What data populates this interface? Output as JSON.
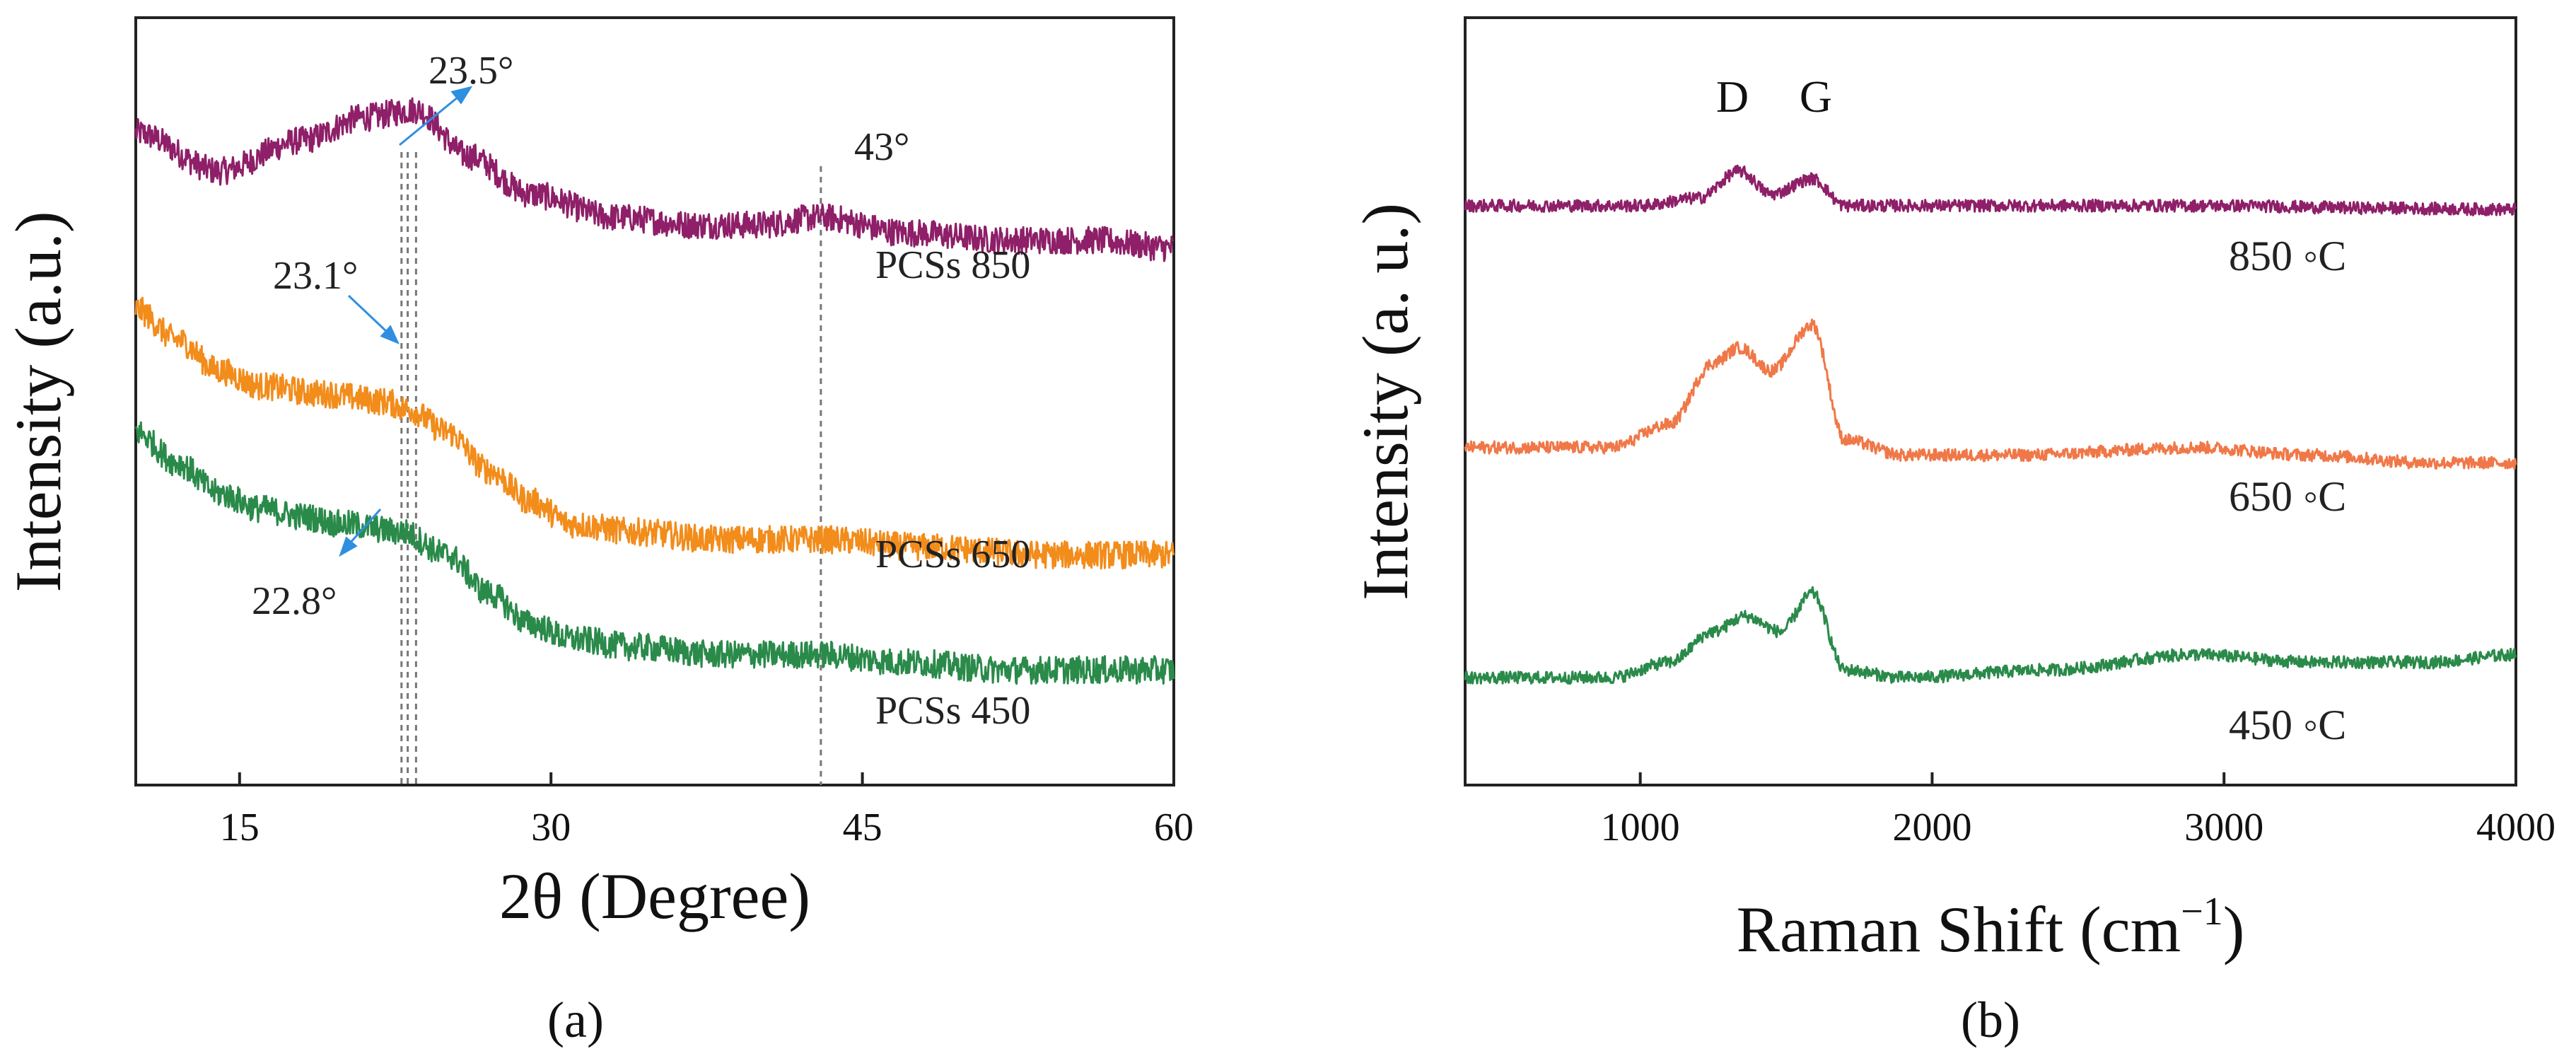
{
  "figure": {
    "panel_a_label": "(a)",
    "panel_b_label": "(b)"
  },
  "chart_data": [
    {
      "id": "a",
      "type": "line",
      "title": "",
      "xlabel": "2θ (Degree)",
      "ylabel": "Intensity (a.u.)",
      "xlim": [
        10,
        60
      ],
      "xticks": [
        15,
        30,
        45,
        60
      ],
      "yticks_visible": false,
      "grid": false,
      "series": [
        {
          "name": "PCSs 850",
          "color": "#8E1F68",
          "x": [
            10,
            14,
            18,
            21,
            23.5,
            26,
            29,
            33,
            37,
            40,
            43,
            47,
            52,
            56,
            60
          ],
          "values": [
            0.85,
            0.8,
            0.84,
            0.87,
            0.88,
            0.82,
            0.77,
            0.74,
            0.73,
            0.73,
            0.74,
            0.72,
            0.71,
            0.71,
            0.7
          ]
        },
        {
          "name": "PCSs 650",
          "color": "#F28C1B",
          "x": [
            10,
            12,
            14,
            16,
            19,
            22,
            23.1,
            25,
            27,
            29,
            31,
            34,
            38,
            43,
            48,
            54,
            60
          ],
          "values": [
            0.62,
            0.58,
            0.54,
            0.52,
            0.51,
            0.5,
            0.49,
            0.46,
            0.41,
            0.37,
            0.34,
            0.33,
            0.32,
            0.32,
            0.31,
            0.3,
            0.3
          ]
        },
        {
          "name": "PCSs 450",
          "color": "#2A8A4A",
          "x": [
            10,
            12,
            14,
            16,
            18,
            20,
            22.8,
            25,
            27,
            29,
            31,
            34,
            38,
            43,
            47,
            52,
            56,
            60
          ],
          "values": [
            0.46,
            0.42,
            0.38,
            0.36,
            0.35,
            0.34,
            0.33,
            0.3,
            0.25,
            0.21,
            0.19,
            0.18,
            0.17,
            0.17,
            0.16,
            0.15,
            0.15,
            0.15
          ]
        }
      ],
      "reference_lines": [
        22.8,
        23.1,
        23.5,
        43
      ],
      "annotations": {
        "peak_850": "23.5°",
        "peak_650": "23.1°",
        "peak_450": "22.8°",
        "peak_43": "43°"
      }
    },
    {
      "id": "b",
      "type": "line",
      "title": "",
      "xlabel": "Raman Shift (cm",
      "xlabel_superscript": "−1",
      "xlabel_close": ")",
      "ylabel": "Intensity (a. u.)",
      "xlim": [
        400,
        4000
      ],
      "xticks": [
        1000,
        2000,
        3000,
        4000
      ],
      "yticks_visible": false,
      "grid": false,
      "band_labels": {
        "d": "D",
        "g": "G"
      },
      "series": [
        {
          "name": "850 ◦C",
          "color": "#8E1F68",
          "x": [
            400,
            1000,
            1200,
            1340,
            1450,
            1590,
            1700,
            2000,
            2600,
            3000,
            3500,
            4000
          ],
          "values": [
            0.755,
            0.755,
            0.765,
            0.8,
            0.77,
            0.79,
            0.755,
            0.755,
            0.755,
            0.755,
            0.752,
            0.75
          ]
        },
        {
          "name": "650 ◦C",
          "color": "#F07848",
          "x": [
            400,
            900,
            1100,
            1250,
            1340,
            1450,
            1590,
            1700,
            1900,
            2300,
            2900,
            3300,
            3700,
            4000
          ],
          "values": [
            0.44,
            0.44,
            0.47,
            0.55,
            0.57,
            0.54,
            0.6,
            0.45,
            0.43,
            0.43,
            0.44,
            0.43,
            0.42,
            0.42
          ]
        },
        {
          "name": "450 ◦C",
          "color": "#2A8A4A",
          "x": [
            400,
            900,
            1100,
            1250,
            1360,
            1480,
            1590,
            1700,
            1900,
            2400,
            2900,
            3300,
            3700,
            4000
          ],
          "values": [
            0.14,
            0.14,
            0.16,
            0.2,
            0.22,
            0.2,
            0.25,
            0.15,
            0.14,
            0.15,
            0.17,
            0.16,
            0.16,
            0.17
          ]
        }
      ]
    }
  ]
}
